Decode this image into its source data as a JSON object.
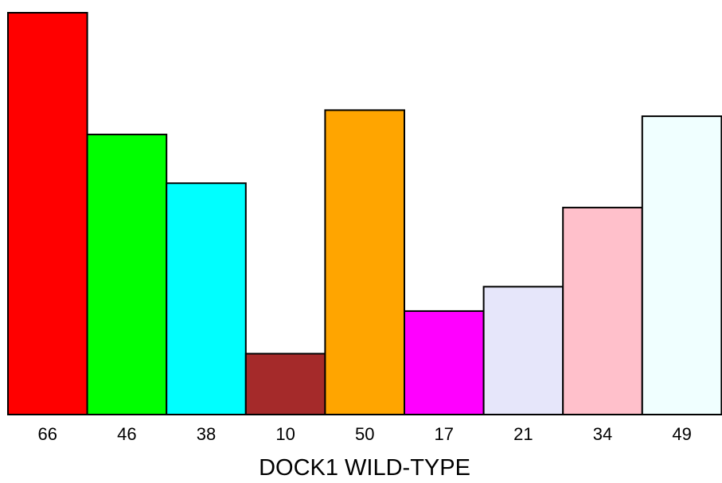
{
  "chart_data": {
    "type": "bar",
    "categories": [
      "66",
      "46",
      "38",
      "10",
      "50",
      "17",
      "21",
      "34",
      "49"
    ],
    "values": [
      66,
      46,
      38,
      10,
      50,
      17,
      21,
      34,
      49
    ],
    "colors": [
      "#ff0000",
      "#00ff00",
      "#00ffff",
      "#a52a2a",
      "#ffa500",
      "#ff00ff",
      "#e6e6fa",
      "#ffc0cb",
      "#f0ffff"
    ],
    "xlabel": "DOCK1 WILD-TYPE",
    "ylim": [
      0,
      66
    ],
    "grid": false,
    "legend": "none"
  }
}
